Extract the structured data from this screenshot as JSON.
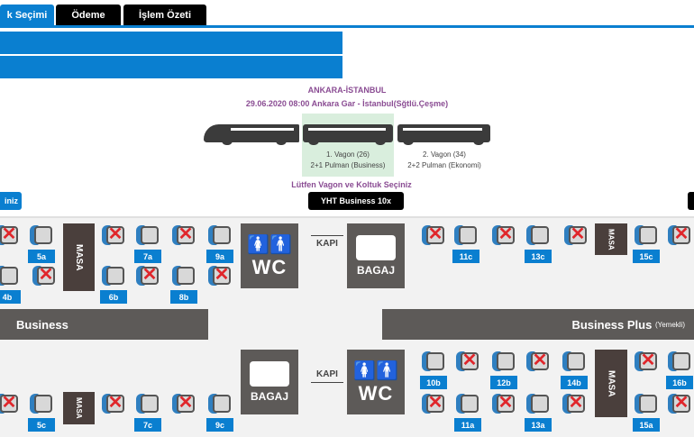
{
  "tabs": [
    {
      "label": "k Seçimi",
      "active": true
    },
    {
      "label": "Ödeme"
    },
    {
      "label": "İşlem Özeti"
    }
  ],
  "colors": {
    "accent": "#0a7fd0",
    "taken": "#e0262b",
    "bar": "#5d5a58",
    "purple": "#8a4c93"
  },
  "journey": {
    "route": "ANKARA-İSTANBUL",
    "details": "29.06.2020 08:00 Ankara Gar - İstanbul(Sğtlü.Çeşme)"
  },
  "wagons": [
    {
      "name": "1. Vagon (26)",
      "type": "2+1 Pulman (Business)",
      "selected": true
    },
    {
      "name": "2. Vagon (34)",
      "type": "2+2 Pulman  (Ekonomi)"
    }
  ],
  "prompt": "Lütfen Vagon ve Koltuk Seçiniz",
  "left_button": "iniz",
  "wagon_button": "YHT Business 10x",
  "map": {
    "masa": "MASA",
    "wc": "WC",
    "bagaj": "BAGAJ",
    "kapi": "KAPI",
    "business": "Business",
    "business_plus": "Business Plus",
    "business_plus_note": "(Yemekli)",
    "seats": [
      {
        "label": "",
        "taken": true
      },
      {
        "label": "5a",
        "taken": false
      },
      {
        "label": "",
        "taken": true
      },
      {
        "label": "7a",
        "taken": false
      },
      {
        "label": "",
        "taken": true
      },
      {
        "label": "9a",
        "taken": false
      },
      {
        "label": "4b",
        "taken": false
      },
      {
        "label": "",
        "taken": true
      },
      {
        "label": "6b",
        "taken": false
      },
      {
        "label": "",
        "taken": true
      },
      {
        "label": "8b",
        "taken": false
      },
      {
        "label": "",
        "taken": true
      },
      {
        "label": "",
        "taken": true
      },
      {
        "label": "11c",
        "taken": false
      },
      {
        "label": "",
        "taken": true
      },
      {
        "label": "13c",
        "taken": false
      },
      {
        "label": "",
        "taken": true
      },
      {
        "label": "15c",
        "taken": false
      },
      {
        "label": "",
        "taken": true
      },
      {
        "label": "",
        "taken": true
      },
      {
        "label": "5c",
        "taken": false
      },
      {
        "label": "",
        "taken": true
      },
      {
        "label": "7c",
        "taken": false
      },
      {
        "label": "",
        "taken": true
      },
      {
        "label": "9c",
        "taken": false
      },
      {
        "label": "10b",
        "taken": false
      },
      {
        "label": "",
        "taken": true
      },
      {
        "label": "12b",
        "taken": false
      },
      {
        "label": "",
        "taken": true
      },
      {
        "label": "14b",
        "taken": false
      },
      {
        "label": "",
        "taken": true
      },
      {
        "label": "16b",
        "taken": false
      },
      {
        "label": "",
        "taken": true
      },
      {
        "label": "11a",
        "taken": false
      },
      {
        "label": "",
        "taken": true
      },
      {
        "label": "13a",
        "taken": false
      },
      {
        "label": "",
        "taken": true
      },
      {
        "label": "15a",
        "taken": false
      },
      {
        "label": "",
        "taken": true
      }
    ]
  }
}
